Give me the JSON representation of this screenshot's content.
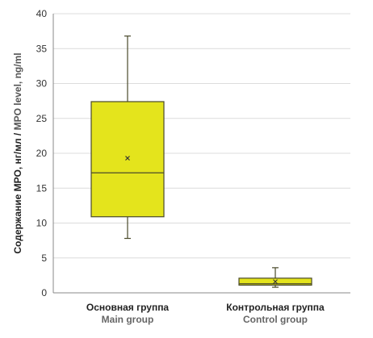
{
  "chart_data": {
    "type": "boxplot",
    "ylabel": {
      "ru": "Содержание МРО, нг/мл",
      "separator": " / ",
      "en": "MPO level, ng/ml"
    },
    "ylim": [
      0,
      40
    ],
    "y_ticks": [
      0,
      5,
      10,
      15,
      20,
      25,
      30,
      35,
      40
    ],
    "grid": true,
    "colors": {
      "box_fill": "#e4e41c",
      "box_stroke": "#4a4a2a",
      "grid": "#dcdcdc",
      "axis": "#888888"
    },
    "groups": [
      {
        "label_ru": "Основная группа",
        "label_en": "Main group",
        "min": 7.8,
        "q1": 10.9,
        "median": 17.2,
        "q3": 27.4,
        "max": 36.8,
        "mean": 19.3
      },
      {
        "label_ru": "Контрольная группа",
        "label_en": "Control group",
        "min": 0.8,
        "q1": 1.1,
        "median": 1.3,
        "q3": 2.1,
        "max": 3.6,
        "mean": 1.6
      }
    ]
  }
}
